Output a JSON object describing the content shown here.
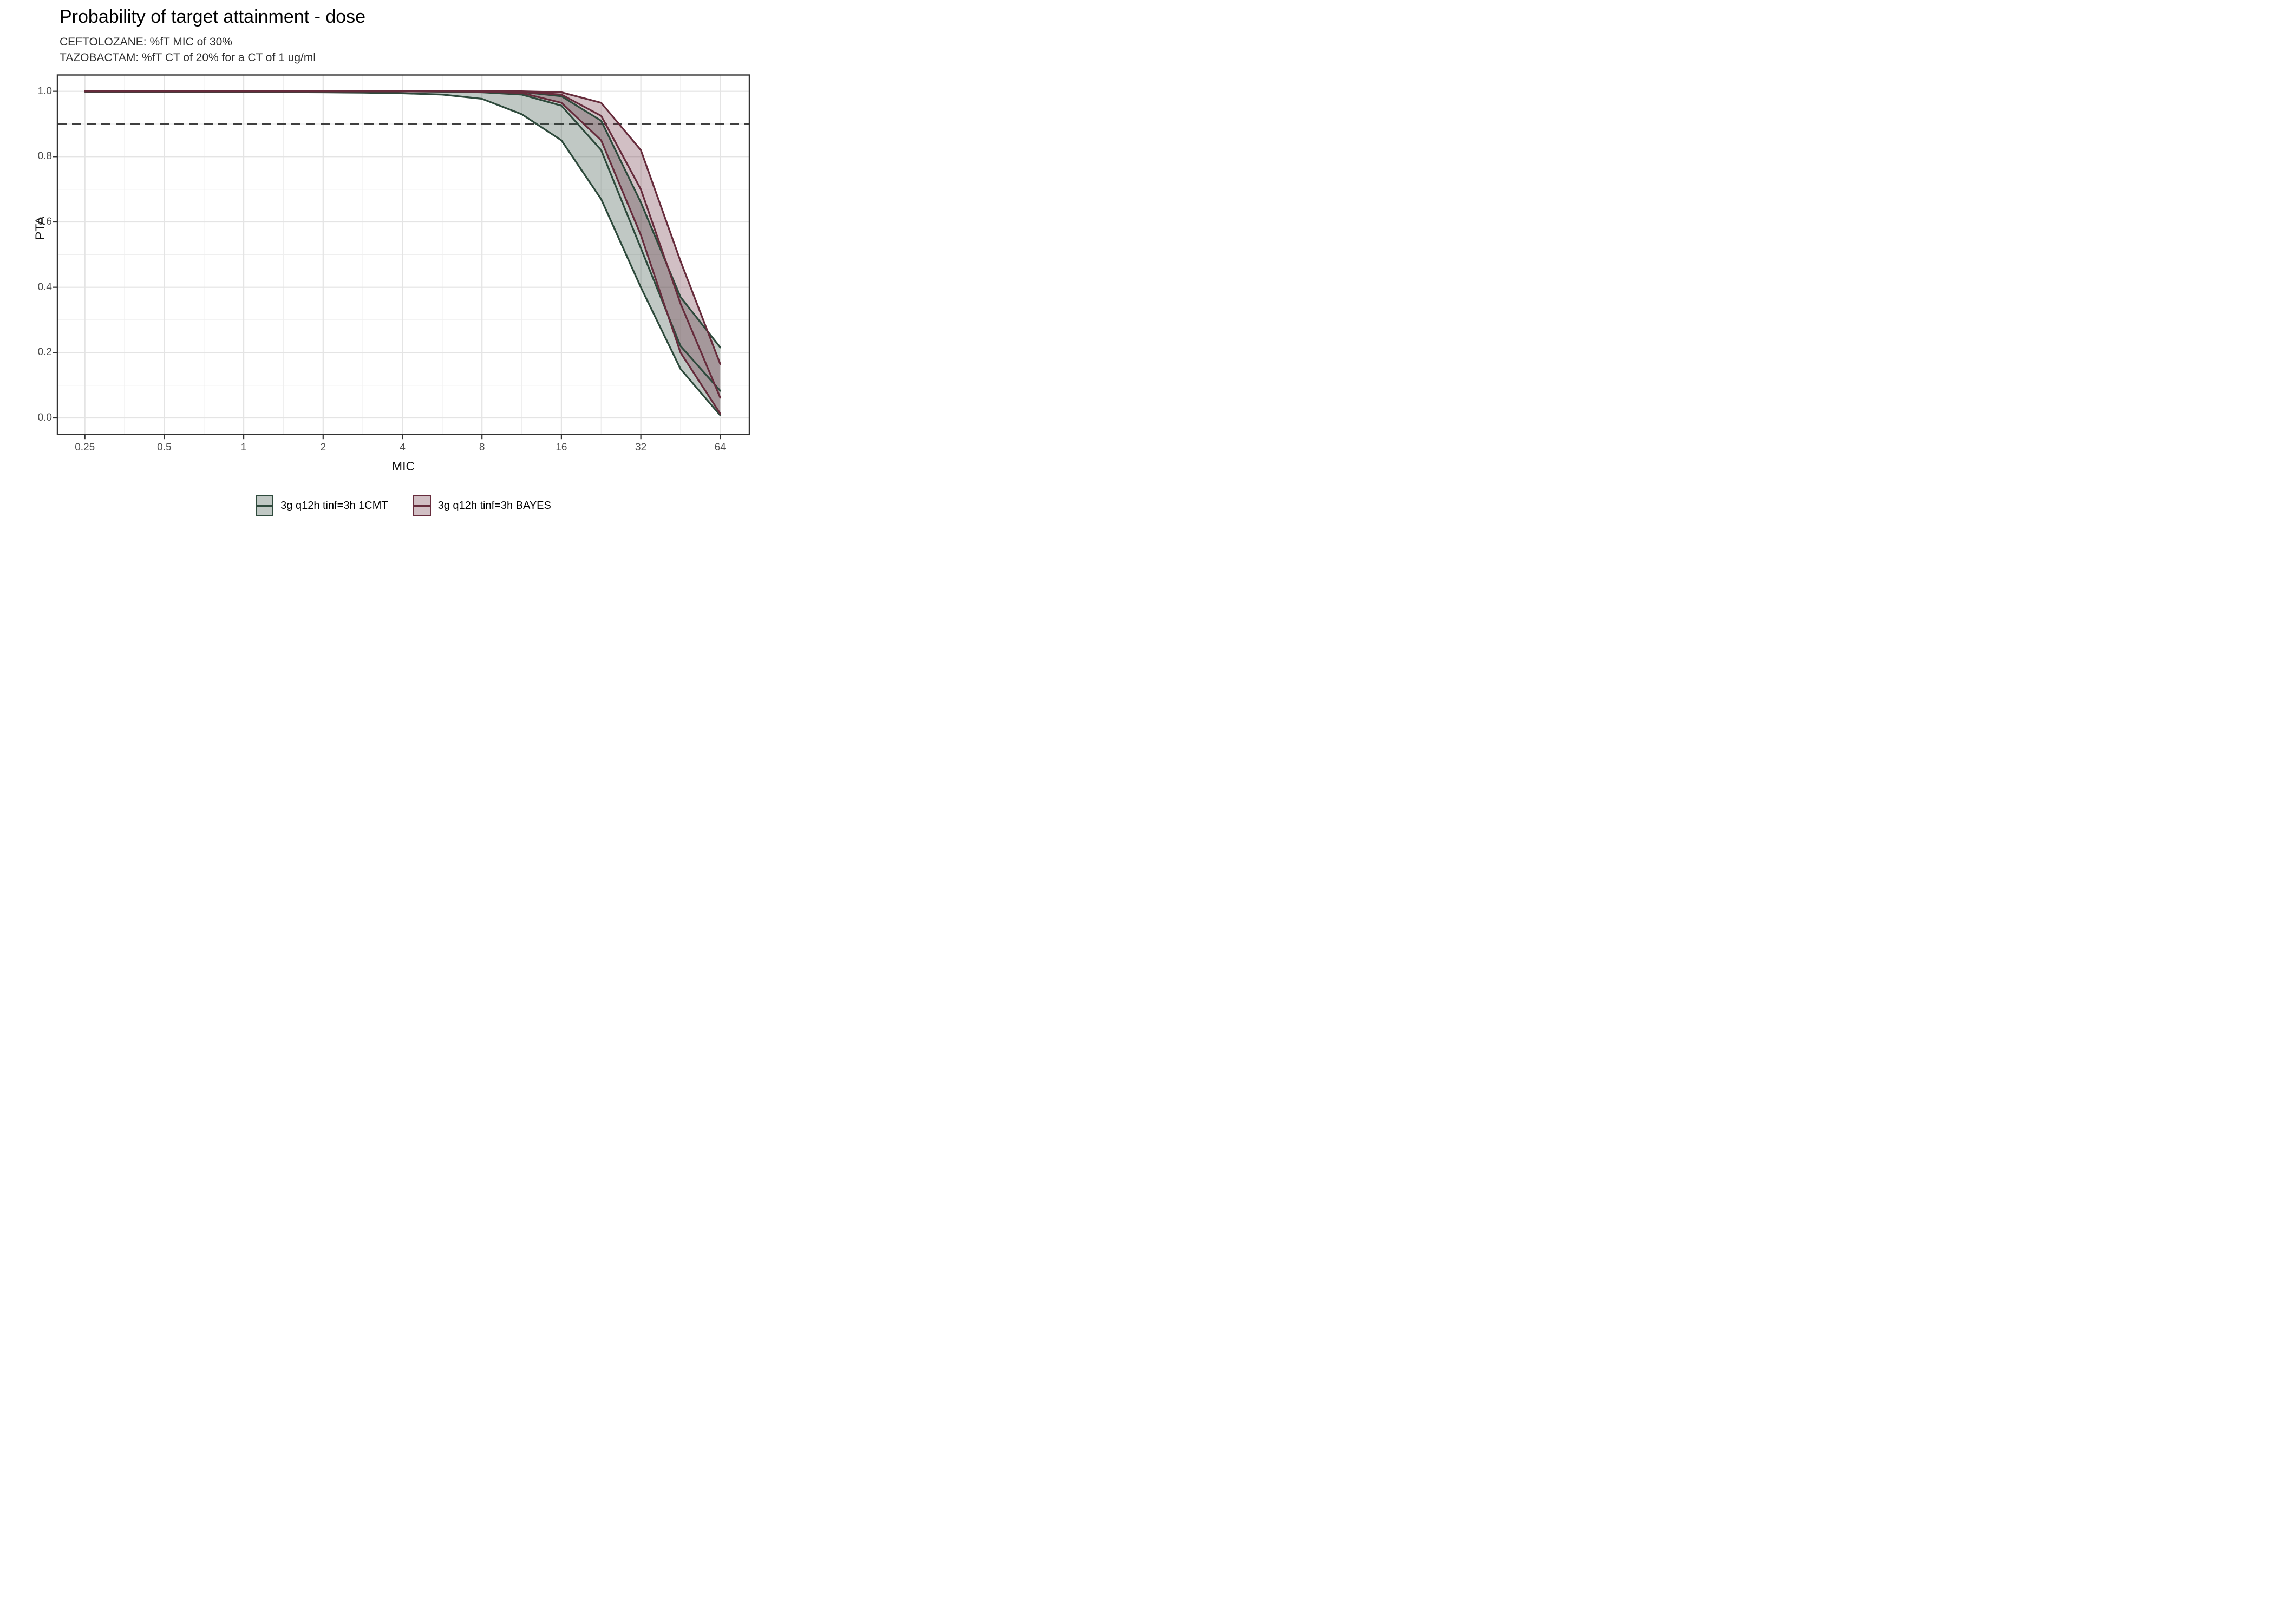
{
  "header": {
    "title": "Probability of target attainment - dose",
    "subtitle_line1": "CEFTOLOZANE: %fT MIC of 30%",
    "subtitle_line2": "TAZOBACTAM: %fT CT of 20% for a CT of 1 ug/ml"
  },
  "chart_data": {
    "type": "line",
    "title": "Probability of target attainment - dose",
    "subtitle": [
      "CEFTOLOZANE: %fT MIC of 30%",
      "TAZOBACTAM: %fT CT of 20% for a CT of 1 ug/ml"
    ],
    "xlabel": "MIC",
    "ylabel": "PTA",
    "x_scale": "log2",
    "xlim": [
      0.25,
      64
    ],
    "ylim": [
      0.0,
      1.0
    ],
    "x_ticks": [
      0.25,
      0.5,
      1,
      2,
      4,
      8,
      16,
      32,
      64
    ],
    "x_tick_labels": [
      "0.25",
      "0.5",
      "1",
      "2",
      "4",
      "8",
      "16",
      "32",
      "64"
    ],
    "x_minor_ticks": [
      0.3536,
      0.7071,
      1.4142,
      2.8284,
      5.6569,
      11.3137,
      22.6274,
      45.2548
    ],
    "y_ticks": [
      0.0,
      0.2,
      0.4,
      0.6,
      0.8,
      1.0
    ],
    "y_tick_labels": [
      "0.0",
      "0.2",
      "0.4",
      "0.6",
      "0.8",
      "1.0"
    ],
    "y_minor_ticks": [
      0.1,
      0.3,
      0.5,
      0.7,
      0.9
    ],
    "grid": true,
    "panel_border_color": "#333333",
    "grid_major_color": "#e4e4e4",
    "grid_minor_color": "#efefef",
    "target_line_y": 0.9,
    "target_line_color": "#3f3f3f",
    "target_line_style": "dashed",
    "legend_position": "bottom",
    "mic": [
      0.25,
      0.5,
      1,
      2,
      2.83,
      4,
      5.66,
      8,
      11.31,
      16,
      22.63,
      32,
      45.25,
      64
    ],
    "series": [
      {
        "name": "3g q12h tinf=3h 1CMT",
        "model": "1CMT",
        "line_color": "#2e4a3c",
        "fill_color": "rgba(46,74,60,0.30)",
        "lower": [
          0.999,
          0.999,
          0.998,
          0.997,
          0.996,
          0.994,
          0.99,
          0.977,
          0.93,
          0.85,
          0.67,
          0.4,
          0.15,
          0.008
        ],
        "median": [
          1.0,
          1.0,
          1.0,
          1.0,
          1.0,
          1.0,
          0.999,
          0.997,
          0.99,
          0.956,
          0.82,
          0.52,
          0.22,
          0.083
        ],
        "upper": [
          1.0,
          1.0,
          1.0,
          1.0,
          1.0,
          1.0,
          1.0,
          1.0,
          0.998,
          0.985,
          0.91,
          0.66,
          0.37,
          0.216
        ]
      },
      {
        "name": "3g q12h tinf=3h BAYES",
        "model": "BAYES",
        "line_color": "#662c3c",
        "fill_color": "rgba(102,44,60,0.30)",
        "lower": [
          1.0,
          1.0,
          1.0,
          1.0,
          1.0,
          1.0,
          1.0,
          0.999,
          0.995,
          0.965,
          0.85,
          0.56,
          0.2,
          0.013
        ],
        "median": [
          1.0,
          1.0,
          1.0,
          1.0,
          1.0,
          1.0,
          1.0,
          1.0,
          0.998,
          0.99,
          0.925,
          0.7,
          0.35,
          0.062
        ],
        "upper": [
          1.0,
          1.0,
          1.0,
          1.0,
          1.0,
          1.0,
          1.0,
          1.0,
          1.0,
          0.997,
          0.965,
          0.82,
          0.48,
          0.165
        ]
      }
    ]
  }
}
